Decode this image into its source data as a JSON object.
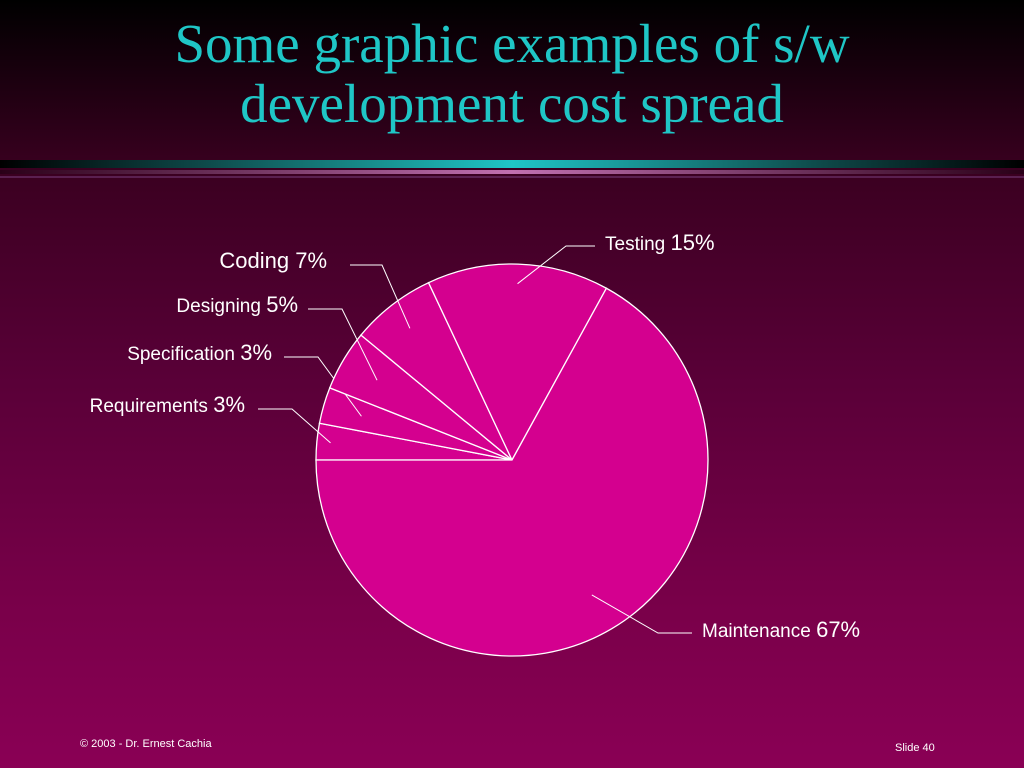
{
  "slide": {
    "title_line1": "Some graphic examples of s/w",
    "title_line2": "development cost spread",
    "footer_left": "© 2003 - Dr. Ernest Cachia",
    "footer_right": "Slide 40"
  },
  "colors": {
    "title": "#1fc6c6",
    "pie_fill": "#d4008f",
    "pie_stroke": "#ffffff",
    "label_text": "#ffffff"
  },
  "chart_data": {
    "type": "pie",
    "slices": [
      {
        "name": "Requirements",
        "pct_label": "3%",
        "value": 3
      },
      {
        "name": "Specification",
        "pct_label": "3%",
        "value": 3
      },
      {
        "name": "Designing",
        "pct_label": "5%",
        "value": 5
      },
      {
        "name": "Coding",
        "pct_label": "7%",
        "value": 7
      },
      {
        "name": "Testing",
        "pct_label": "15%",
        "value": 15
      },
      {
        "name": "Maintenance",
        "pct_label": "67%",
        "value": 67
      }
    ]
  }
}
